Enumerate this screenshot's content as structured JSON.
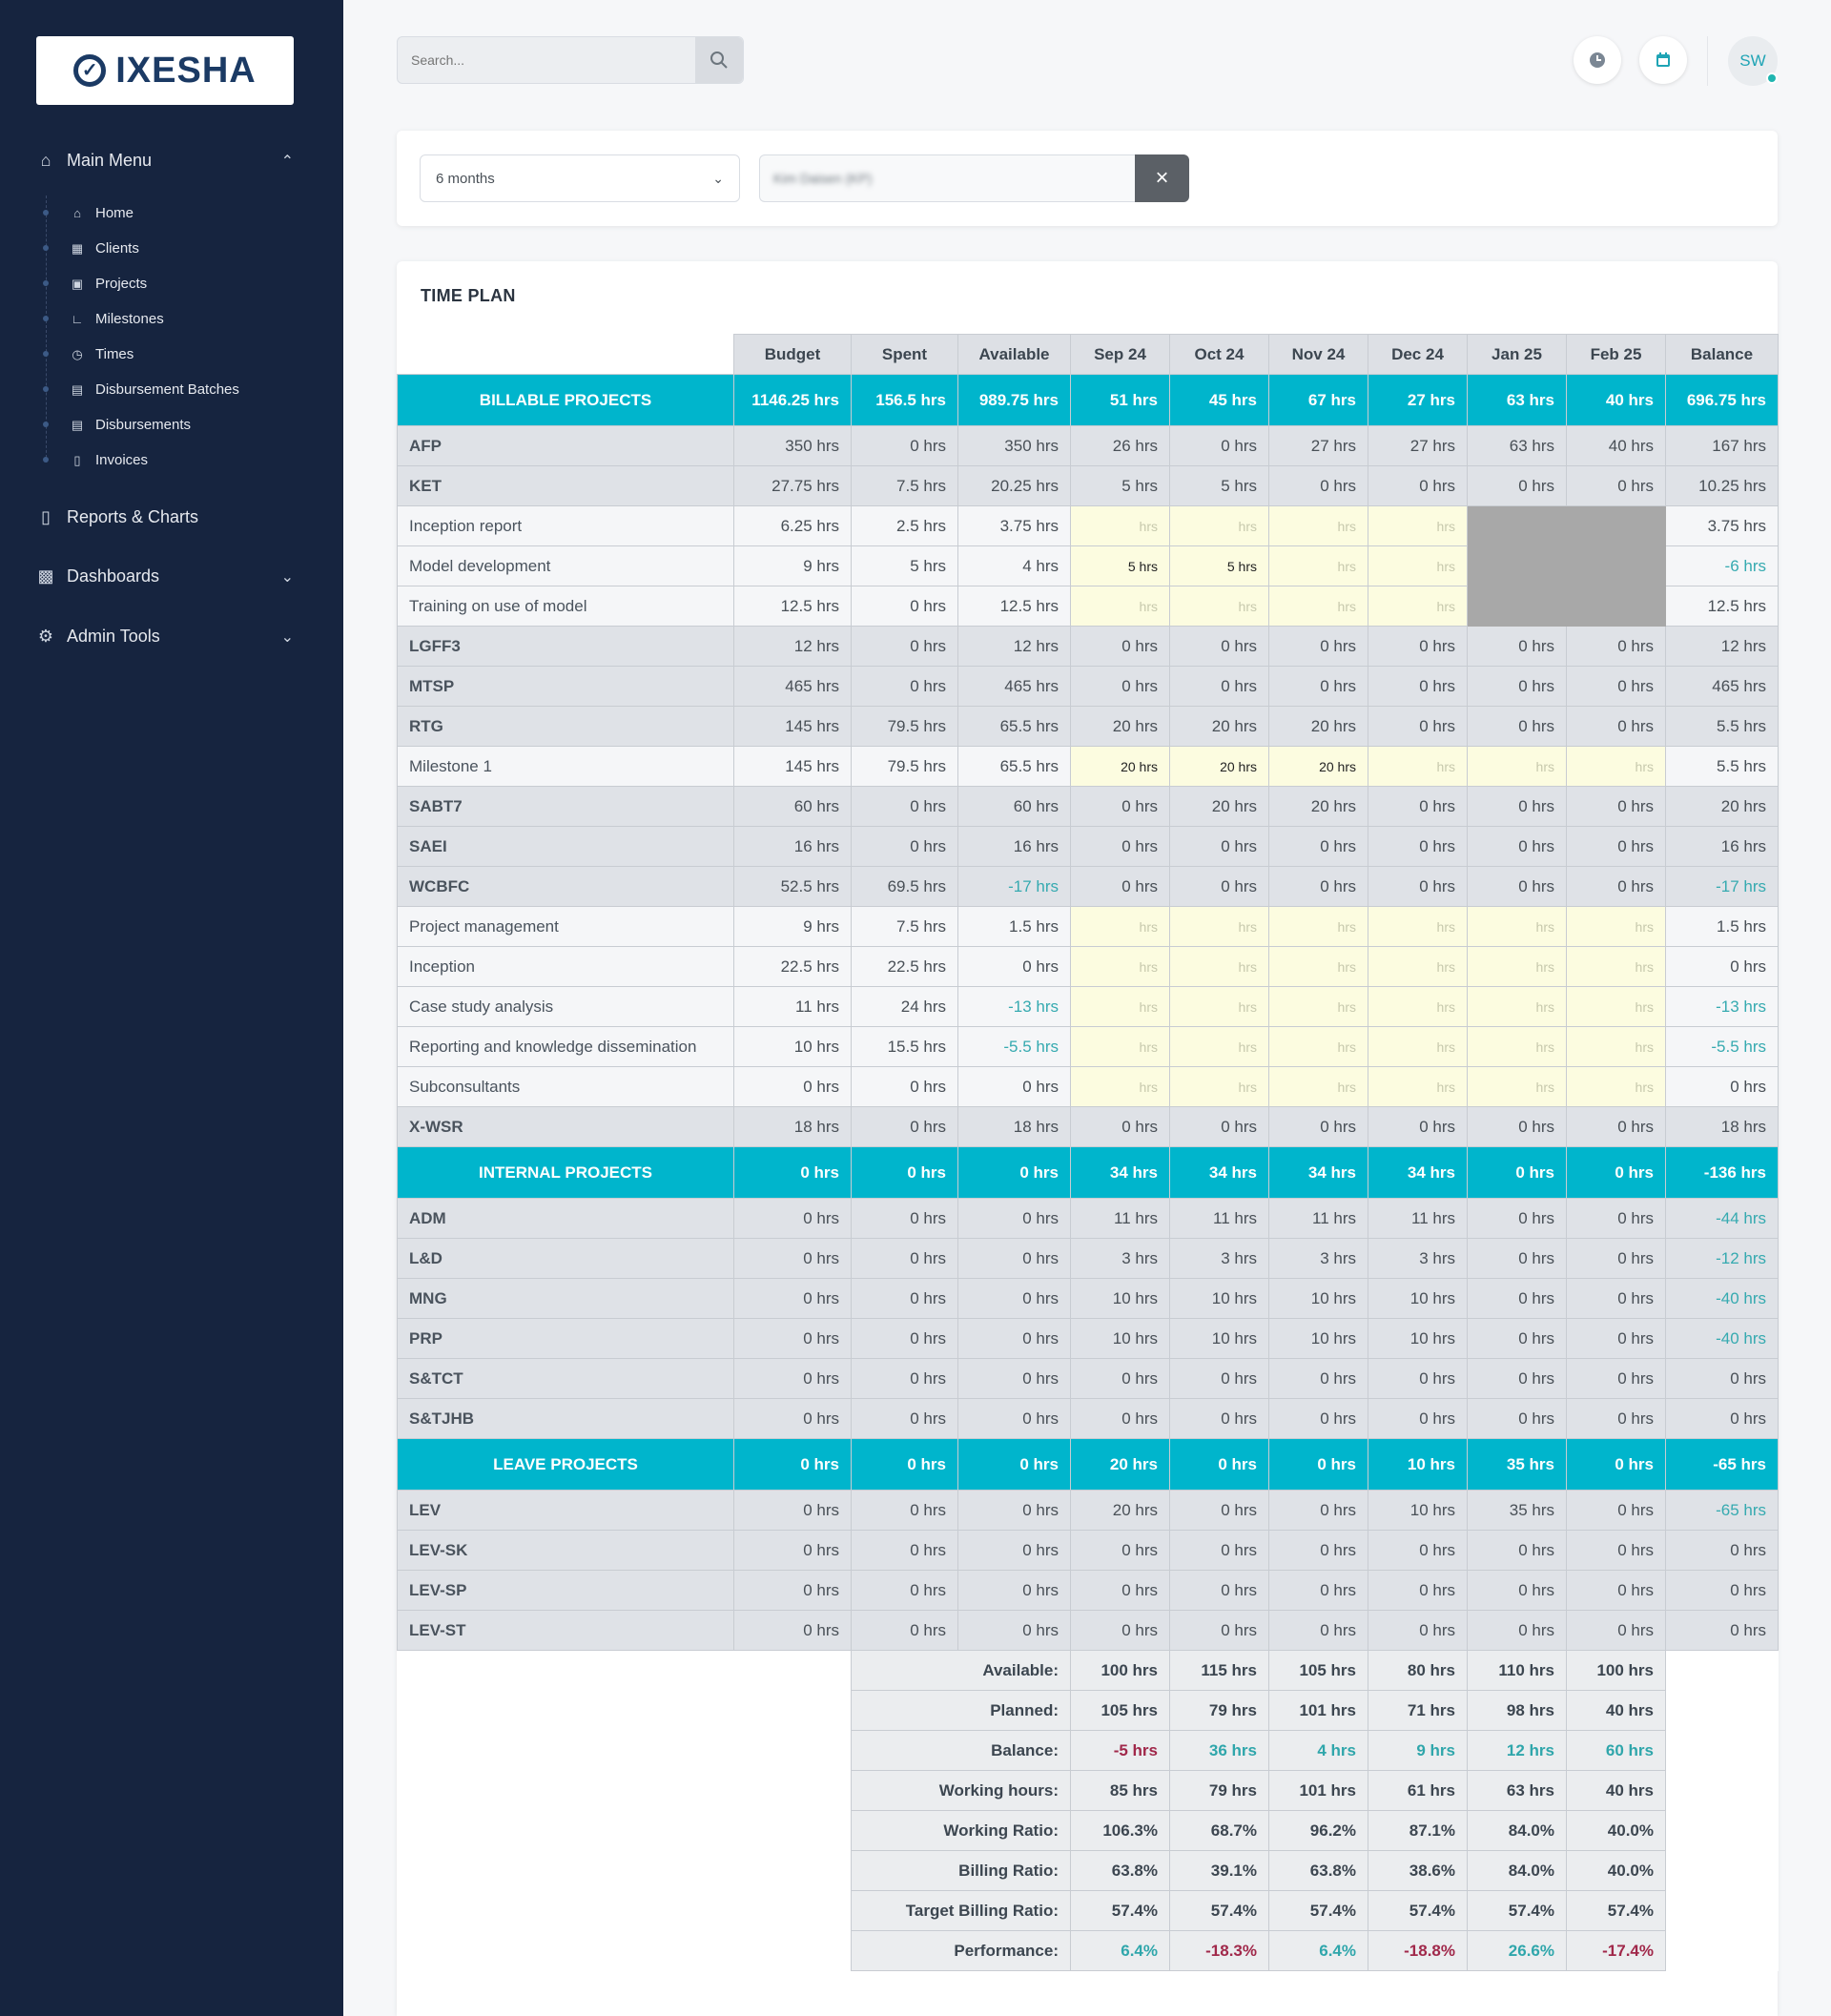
{
  "brand": {
    "name": "IXESHA"
  },
  "nav": {
    "main_menu_label": "Main Menu",
    "items": [
      {
        "label": "Home",
        "icon": "home-icon"
      },
      {
        "label": "Clients",
        "icon": "building-icon"
      },
      {
        "label": "Projects",
        "icon": "briefcase-icon"
      },
      {
        "label": "Milestones",
        "icon": "chart-icon"
      },
      {
        "label": "Times",
        "icon": "clock-icon"
      },
      {
        "label": "Disbursement Batches",
        "icon": "money-icon"
      },
      {
        "label": "Disbursements",
        "icon": "money-icon"
      },
      {
        "label": "Invoices",
        "icon": "file-icon"
      }
    ],
    "reports_label": "Reports & Charts",
    "dashboards_label": "Dashboards",
    "admin_label": "Admin Tools"
  },
  "header": {
    "search_placeholder": "Search...",
    "avatar_initials": "SW"
  },
  "filters": {
    "period": "6 months",
    "user": "Kim Daisen (KP)"
  },
  "plan": {
    "title": "TIME PLAN",
    "columns": [
      "Budget",
      "Spent",
      "Available",
      "Sep 24",
      "Oct 24",
      "Nov 24",
      "Dec 24",
      "Jan 25",
      "Feb 25",
      "Balance"
    ],
    "rows": [
      {
        "type": "section",
        "name": "BILLABLE PROJECTS",
        "cells": [
          "1146.25 hrs",
          "156.5 hrs",
          "989.75 hrs",
          "51 hrs",
          "45 hrs",
          "67 hrs",
          "27 hrs",
          "63 hrs",
          "40 hrs",
          "696.75 hrs"
        ]
      },
      {
        "type": "project",
        "name": "AFP",
        "cells": [
          "350 hrs",
          "0 hrs",
          "350 hrs",
          "26 hrs",
          "0 hrs",
          "27 hrs",
          "27 hrs",
          "63 hrs",
          "40 hrs",
          "167 hrs"
        ]
      },
      {
        "type": "project",
        "name": "KET",
        "cells": [
          "27.75 hrs",
          "7.5 hrs",
          "20.25 hrs",
          "5 hrs",
          "5 hrs",
          "0 hrs",
          "0 hrs",
          "0 hrs",
          "0 hrs",
          "10.25 hrs"
        ]
      },
      {
        "type": "milestone",
        "name": "Inception report",
        "cells": [
          "6.25 hrs",
          "2.5 hrs",
          "3.75 hrs",
          "hrs",
          "hrs",
          "hrs",
          "hrs",
          "",
          "",
          "3.75 hrs"
        ]
      },
      {
        "type": "milestone",
        "name": "Model development",
        "cells": [
          "9 hrs",
          "5 hrs",
          "4 hrs",
          "5 hrs",
          "5 hrs",
          "hrs",
          "hrs",
          "",
          "",
          "-6 hrs"
        ]
      },
      {
        "type": "milestone",
        "name": "Training on use of model",
        "cells": [
          "12.5 hrs",
          "0 hrs",
          "12.5 hrs",
          "hrs",
          "hrs",
          "hrs",
          "hrs",
          "",
          "",
          "12.5 hrs"
        ]
      },
      {
        "type": "project",
        "name": "LGFF3",
        "cells": [
          "12 hrs",
          "0 hrs",
          "12 hrs",
          "0 hrs",
          "0 hrs",
          "0 hrs",
          "0 hrs",
          "0 hrs",
          "0 hrs",
          "12 hrs"
        ]
      },
      {
        "type": "project",
        "name": "MTSP",
        "cells": [
          "465 hrs",
          "0 hrs",
          "465 hrs",
          "0 hrs",
          "0 hrs",
          "0 hrs",
          "0 hrs",
          "0 hrs",
          "0 hrs",
          "465 hrs"
        ]
      },
      {
        "type": "project",
        "name": "RTG",
        "cells": [
          "145 hrs",
          "79.5 hrs",
          "65.5 hrs",
          "20 hrs",
          "20 hrs",
          "20 hrs",
          "0 hrs",
          "0 hrs",
          "0 hrs",
          "5.5 hrs"
        ]
      },
      {
        "type": "milestone",
        "name": "Milestone 1",
        "cells": [
          "145 hrs",
          "79.5 hrs",
          "65.5 hrs",
          "20 hrs",
          "20 hrs",
          "20 hrs",
          "hrs",
          "hrs",
          "hrs",
          "5.5 hrs"
        ]
      },
      {
        "type": "project",
        "name": "SABT7",
        "cells": [
          "60 hrs",
          "0 hrs",
          "60 hrs",
          "0 hrs",
          "20 hrs",
          "20 hrs",
          "0 hrs",
          "0 hrs",
          "0 hrs",
          "20 hrs"
        ]
      },
      {
        "type": "project",
        "name": "SAEI",
        "cells": [
          "16 hrs",
          "0 hrs",
          "16 hrs",
          "0 hrs",
          "0 hrs",
          "0 hrs",
          "0 hrs",
          "0 hrs",
          "0 hrs",
          "16 hrs"
        ]
      },
      {
        "type": "project",
        "name": "WCBFC",
        "cells": [
          "52.5 hrs",
          "69.5 hrs",
          "-17 hrs",
          "0 hrs",
          "0 hrs",
          "0 hrs",
          "0 hrs",
          "0 hrs",
          "0 hrs",
          "-17 hrs"
        ]
      },
      {
        "type": "milestone",
        "name": "Project management",
        "cells": [
          "9 hrs",
          "7.5 hrs",
          "1.5 hrs",
          "hrs",
          "hrs",
          "hrs",
          "hrs",
          "hrs",
          "hrs",
          "1.5 hrs"
        ]
      },
      {
        "type": "milestone",
        "name": "Inception",
        "cells": [
          "22.5 hrs",
          "22.5 hrs",
          "0 hrs",
          "hrs",
          "hrs",
          "hrs",
          "hrs",
          "hrs",
          "hrs",
          "0 hrs"
        ]
      },
      {
        "type": "milestone",
        "name": "Case study analysis",
        "cells": [
          "11 hrs",
          "24 hrs",
          "-13 hrs",
          "hrs",
          "hrs",
          "hrs",
          "hrs",
          "hrs",
          "hrs",
          "-13 hrs"
        ]
      },
      {
        "type": "milestone",
        "name": "Reporting and knowledge dissemination",
        "cells": [
          "10 hrs",
          "15.5 hrs",
          "-5.5 hrs",
          "hrs",
          "hrs",
          "hrs",
          "hrs",
          "hrs",
          "hrs",
          "-5.5 hrs"
        ]
      },
      {
        "type": "milestone",
        "name": "Subconsultants",
        "cells": [
          "0 hrs",
          "0 hrs",
          "0 hrs",
          "hrs",
          "hrs",
          "hrs",
          "hrs",
          "hrs",
          "hrs",
          "0 hrs"
        ]
      },
      {
        "type": "project",
        "name": "X-WSR",
        "cells": [
          "18 hrs",
          "0 hrs",
          "18 hrs",
          "0 hrs",
          "0 hrs",
          "0 hrs",
          "0 hrs",
          "0 hrs",
          "0 hrs",
          "18 hrs"
        ]
      },
      {
        "type": "section",
        "name": "INTERNAL PROJECTS",
        "cells": [
          "0 hrs",
          "0 hrs",
          "0 hrs",
          "34 hrs",
          "34 hrs",
          "34 hrs",
          "34 hrs",
          "0 hrs",
          "0 hrs",
          "-136 hrs"
        ]
      },
      {
        "type": "project",
        "name": "ADM",
        "cells": [
          "0 hrs",
          "0 hrs",
          "0 hrs",
          "11 hrs",
          "11 hrs",
          "11 hrs",
          "11 hrs",
          "0 hrs",
          "0 hrs",
          "-44 hrs"
        ]
      },
      {
        "type": "project",
        "name": "L&D",
        "cells": [
          "0 hrs",
          "0 hrs",
          "0 hrs",
          "3 hrs",
          "3 hrs",
          "3 hrs",
          "3 hrs",
          "0 hrs",
          "0 hrs",
          "-12 hrs"
        ]
      },
      {
        "type": "project",
        "name": "MNG",
        "cells": [
          "0 hrs",
          "0 hrs",
          "0 hrs",
          "10 hrs",
          "10 hrs",
          "10 hrs",
          "10 hrs",
          "0 hrs",
          "0 hrs",
          "-40 hrs"
        ]
      },
      {
        "type": "project",
        "name": "PRP",
        "cells": [
          "0 hrs",
          "0 hrs",
          "0 hrs",
          "10 hrs",
          "10 hrs",
          "10 hrs",
          "10 hrs",
          "0 hrs",
          "0 hrs",
          "-40 hrs"
        ]
      },
      {
        "type": "project",
        "name": "S&TCT",
        "cells": [
          "0 hrs",
          "0 hrs",
          "0 hrs",
          "0 hrs",
          "0 hrs",
          "0 hrs",
          "0 hrs",
          "0 hrs",
          "0 hrs",
          "0 hrs"
        ]
      },
      {
        "type": "project",
        "name": "S&TJHB",
        "cells": [
          "0 hrs",
          "0 hrs",
          "0 hrs",
          "0 hrs",
          "0 hrs",
          "0 hrs",
          "0 hrs",
          "0 hrs",
          "0 hrs",
          "0 hrs"
        ]
      },
      {
        "type": "section",
        "name": "LEAVE PROJECTS",
        "cells": [
          "0 hrs",
          "0 hrs",
          "0 hrs",
          "20 hrs",
          "0 hrs",
          "0 hrs",
          "10 hrs",
          "35 hrs",
          "0 hrs",
          "-65 hrs"
        ]
      },
      {
        "type": "project",
        "name": "LEV",
        "cells": [
          "0 hrs",
          "0 hrs",
          "0 hrs",
          "20 hrs",
          "0 hrs",
          "0 hrs",
          "10 hrs",
          "35 hrs",
          "0 hrs",
          "-65 hrs"
        ]
      },
      {
        "type": "project",
        "name": "LEV-SK",
        "cells": [
          "0 hrs",
          "0 hrs",
          "0 hrs",
          "0 hrs",
          "0 hrs",
          "0 hrs",
          "0 hrs",
          "0 hrs",
          "0 hrs",
          "0 hrs"
        ]
      },
      {
        "type": "project",
        "name": "LEV-SP",
        "cells": [
          "0 hrs",
          "0 hrs",
          "0 hrs",
          "0 hrs",
          "0 hrs",
          "0 hrs",
          "0 hrs",
          "0 hrs",
          "0 hrs",
          "0 hrs"
        ]
      },
      {
        "type": "project",
        "name": "LEV-ST",
        "cells": [
          "0 hrs",
          "0 hrs",
          "0 hrs",
          "0 hrs",
          "0 hrs",
          "0 hrs",
          "0 hrs",
          "0 hrs",
          "0 hrs",
          "0 hrs"
        ]
      }
    ],
    "summary": [
      {
        "label": "Available:",
        "cells": [
          "100 hrs",
          "115 hrs",
          "105 hrs",
          "80 hrs",
          "110 hrs",
          "100 hrs"
        ]
      },
      {
        "label": "Planned:",
        "cells": [
          "105 hrs",
          "79 hrs",
          "101 hrs",
          "71 hrs",
          "98 hrs",
          "40 hrs"
        ]
      },
      {
        "label": "Balance:",
        "cells": [
          "-5 hrs",
          "36 hrs",
          "4 hrs",
          "9 hrs",
          "12 hrs",
          "60 hrs"
        ]
      },
      {
        "label": "Working hours:",
        "cells": [
          "85 hrs",
          "79 hrs",
          "101 hrs",
          "61 hrs",
          "63 hrs",
          "40 hrs"
        ]
      },
      {
        "label": "Working Ratio:",
        "cells": [
          "106.3%",
          "68.7%",
          "96.2%",
          "87.1%",
          "84.0%",
          "40.0%"
        ]
      },
      {
        "label": "Billing Ratio:",
        "cells": [
          "63.8%",
          "39.1%",
          "63.8%",
          "38.6%",
          "84.0%",
          "40.0%"
        ]
      },
      {
        "label": "Target Billing Ratio:",
        "cells": [
          "57.4%",
          "57.4%",
          "57.4%",
          "57.4%",
          "57.4%",
          "57.4%"
        ]
      },
      {
        "label": "Performance:",
        "cells": [
          "6.4%",
          "-18.3%",
          "6.4%",
          "-18.8%",
          "26.6%",
          "-17.4%"
        ]
      }
    ]
  }
}
